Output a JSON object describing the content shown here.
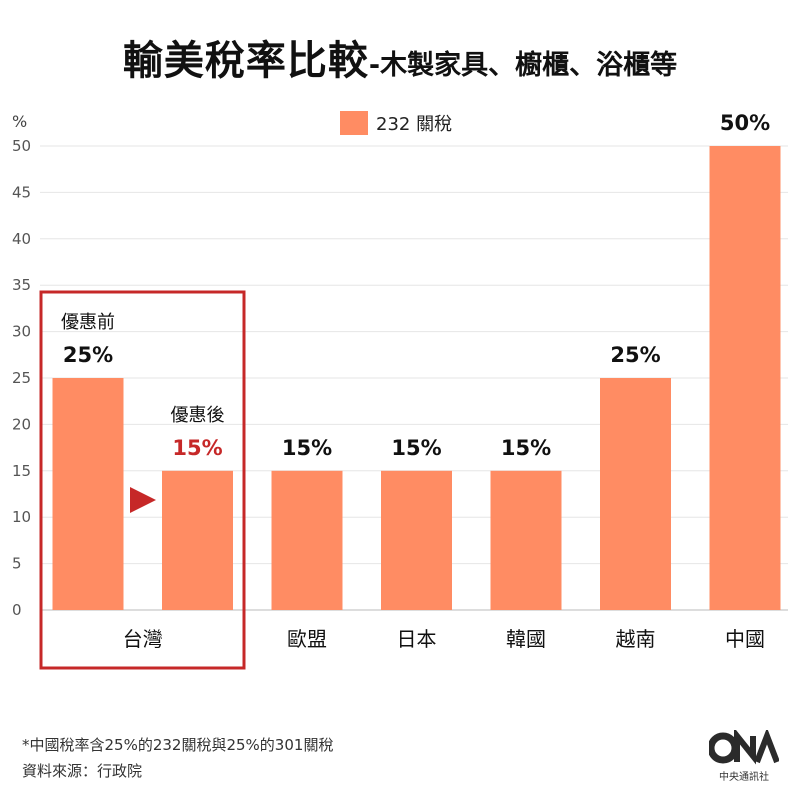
{
  "title": {
    "main": "輸美稅率比較",
    "sub": "-木製家具、櫥櫃、浴櫃等"
  },
  "unit": "%",
  "footer": {
    "note": "*中國稅率含25%的232關稅與25%的301關稅",
    "source": "資料來源：行政院"
  },
  "logo": {
    "mark": "CNA",
    "text": "中央通訊社"
  },
  "chart_data": {
    "type": "bar",
    "ylim": [
      0,
      50
    ],
    "yticks": [
      0,
      5,
      10,
      15,
      20,
      25,
      30,
      35,
      40,
      45,
      50
    ],
    "grid": true,
    "legend": {
      "position": "top",
      "entries": [
        "232 關稅"
      ]
    },
    "colors": {
      "bar": "#ff8c63",
      "highlight": "#c62828",
      "grid": "#e6e6e6"
    },
    "series": [
      {
        "name": "232 關稅",
        "values": [
          25,
          15,
          15,
          15,
          15,
          25,
          50
        ],
        "data_labels": [
          "25%",
          "15%",
          "15%",
          "15%",
          "15%",
          "25%",
          "50%"
        ],
        "bar_notes": [
          "優惠前",
          "優惠後",
          "",
          "",
          "",
          "",
          ""
        ]
      }
    ],
    "categories": [
      "台灣",
      "",
      "歐盟",
      "日本",
      "韓國",
      "越南",
      "中國"
    ],
    "annotations": [
      {
        "type": "highlight-box",
        "around": "台灣"
      },
      {
        "type": "arrow",
        "direction": "right",
        "from": "優惠前",
        "to": "優惠後"
      }
    ]
  }
}
